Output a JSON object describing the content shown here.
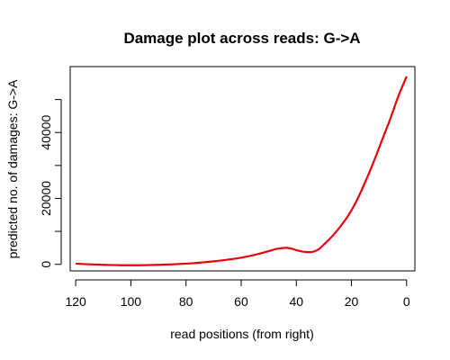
{
  "chart_data": {
    "type": "line",
    "title": "Damage plot across reads: G->A",
    "xlabel": "read positions (from right)",
    "ylabel": "predicted no. of damages: G->A",
    "x_reversed": true,
    "xlim": [
      122,
      -3
    ],
    "ylim": [
      -2000,
      60000
    ],
    "x_ticks": [
      120,
      100,
      80,
      60,
      40,
      20,
      0
    ],
    "y_ticks": [
      0,
      20000,
      40000
    ],
    "legend": "none",
    "grid": false,
    "series": [
      {
        "color": "#e8000b",
        "x": [
          120,
          115,
          110,
          105,
          100,
          95,
          90,
          85,
          80,
          75,
          70,
          65,
          60,
          55,
          50,
          47,
          44,
          42,
          40,
          38,
          36,
          34,
          32,
          30,
          27,
          24,
          21,
          18,
          15,
          12,
          9,
          6,
          3,
          0
        ],
        "y": [
          200,
          0,
          -150,
          -250,
          -300,
          -250,
          -150,
          0,
          200,
          500,
          900,
          1400,
          2000,
          2900,
          4000,
          4700,
          5000,
          4800,
          4300,
          3900,
          3700,
          3800,
          4500,
          6000,
          8500,
          11500,
          15000,
          19500,
          25000,
          31000,
          37500,
          44000,
          51000,
          57000
        ]
      }
    ]
  }
}
